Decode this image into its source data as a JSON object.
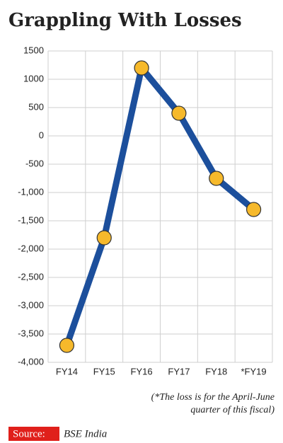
{
  "chart_data": {
    "type": "line",
    "title": "Grappling With Losses",
    "categories": [
      "FY14",
      "FY15",
      "FY16",
      "FY17",
      "FY18",
      "*FY19"
    ],
    "series": [
      {
        "values": [
          -3700,
          -1800,
          1200,
          400,
          -750,
          -1300
        ],
        "color": "#1c4f9c",
        "marker_color": "#f6b92b"
      }
    ],
    "ylim": [
      -4000,
      1500
    ],
    "yticks": [
      {
        "value": -4000,
        "label": "-4,000"
      },
      {
        "value": -3500,
        "label": "-3,500"
      },
      {
        "value": -3000,
        "label": "-3,000"
      },
      {
        "value": -2500,
        "label": "-2,500"
      },
      {
        "value": -2000,
        "label": "-2,000"
      },
      {
        "value": -1500,
        "label": "-1,500"
      },
      {
        "value": -1000,
        "label": "-1,000"
      },
      -500,
      0,
      500,
      1000,
      1500
    ],
    "grid": true,
    "annotation": [
      "(*The loss is for the April-June",
      "quarter of this fiscal)"
    ],
    "source_label": "Source:",
    "source": "BSE India"
  }
}
